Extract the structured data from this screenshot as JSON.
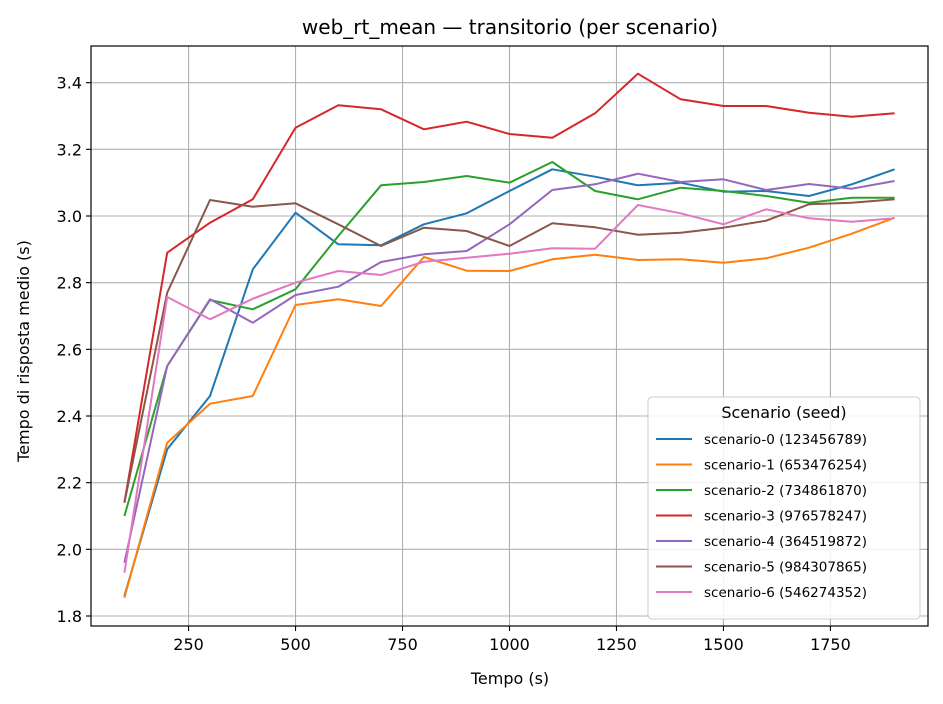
{
  "chart_data": {
    "type": "line",
    "title": "web_rt_mean — transitorio (per scenario)",
    "xlabel": "Tempo (s)",
    "ylabel": "Tempo di risposta medio (s)",
    "xlim": [
      22,
      1978
    ],
    "ylim": [
      1.77,
      3.51
    ],
    "xticks": [
      250,
      500,
      750,
      1000,
      1250,
      1500,
      1750
    ],
    "xtick_labels": [
      "250",
      "500",
      "750",
      "1000",
      "1250",
      "1500",
      "1750"
    ],
    "yticks": [
      1.8,
      2.0,
      2.2,
      2.4,
      2.6,
      2.8,
      3.0,
      3.2,
      3.4
    ],
    "ytick_labels": [
      "1.8",
      "2.0",
      "2.2",
      "2.4",
      "2.6",
      "2.8",
      "3.0",
      "3.2",
      "3.4"
    ],
    "grid": true,
    "legend": {
      "title": "Scenario (seed)",
      "position": "lower-right"
    },
    "x": [
      100,
      200,
      300,
      400,
      500,
      600,
      700,
      800,
      900,
      1000,
      1100,
      1200,
      1300,
      1400,
      1500,
      1600,
      1700,
      1800,
      1900
    ],
    "series": [
      {
        "name": "scenario-0 (123456789)",
        "color": "#1f77b4",
        "values": [
          1.86,
          2.3,
          2.46,
          2.84,
          3.01,
          2.915,
          2.912,
          2.975,
          3.008,
          3.075,
          3.14,
          3.118,
          3.092,
          3.1,
          3.073,
          3.075,
          3.06,
          3.095,
          3.14
        ]
      },
      {
        "name": "scenario-1 (653476254)",
        "color": "#ff7f0e",
        "values": [
          1.855,
          2.32,
          2.437,
          2.46,
          2.733,
          2.75,
          2.73,
          2.877,
          2.836,
          2.835,
          2.87,
          2.884,
          2.868,
          2.87,
          2.86,
          2.873,
          2.905,
          2.947,
          2.995
        ]
      },
      {
        "name": "scenario-2 (734861870)",
        "color": "#2ca02c",
        "values": [
          2.1,
          2.55,
          2.748,
          2.72,
          2.78,
          2.94,
          3.092,
          3.102,
          3.12,
          3.1,
          3.162,
          3.075,
          3.05,
          3.085,
          3.075,
          3.06,
          3.04,
          3.055,
          3.055
        ]
      },
      {
        "name": "scenario-3 (976578247)",
        "color": "#d62728",
        "values": [
          2.14,
          2.89,
          2.98,
          3.05,
          3.265,
          3.332,
          3.32,
          3.26,
          3.283,
          3.246,
          3.235,
          3.308,
          3.427,
          3.35,
          3.33,
          3.33,
          3.31,
          3.298,
          3.308
        ]
      },
      {
        "name": "scenario-4 (364519872)",
        "color": "#9467bd",
        "values": [
          1.96,
          2.55,
          2.75,
          2.68,
          2.763,
          2.788,
          2.862,
          2.885,
          2.895,
          2.975,
          3.078,
          3.095,
          3.127,
          3.102,
          3.11,
          3.078,
          3.096,
          3.082,
          3.105
        ]
      },
      {
        "name": "scenario-5 (984307865)",
        "color": "#8c564b",
        "values": [
          2.14,
          2.77,
          3.048,
          3.028,
          3.038,
          2.975,
          2.91,
          2.965,
          2.955,
          2.91,
          2.978,
          2.966,
          2.944,
          2.95,
          2.965,
          2.986,
          3.035,
          3.04,
          3.05
        ]
      },
      {
        "name": "scenario-6 (546274352)",
        "color": "#e377c2",
        "values": [
          1.93,
          2.757,
          2.69,
          2.752,
          2.8,
          2.835,
          2.823,
          2.863,
          2.875,
          2.887,
          2.903,
          2.902,
          3.033,
          3.008,
          2.975,
          3.02,
          2.993,
          2.983,
          2.993
        ]
      }
    ]
  }
}
